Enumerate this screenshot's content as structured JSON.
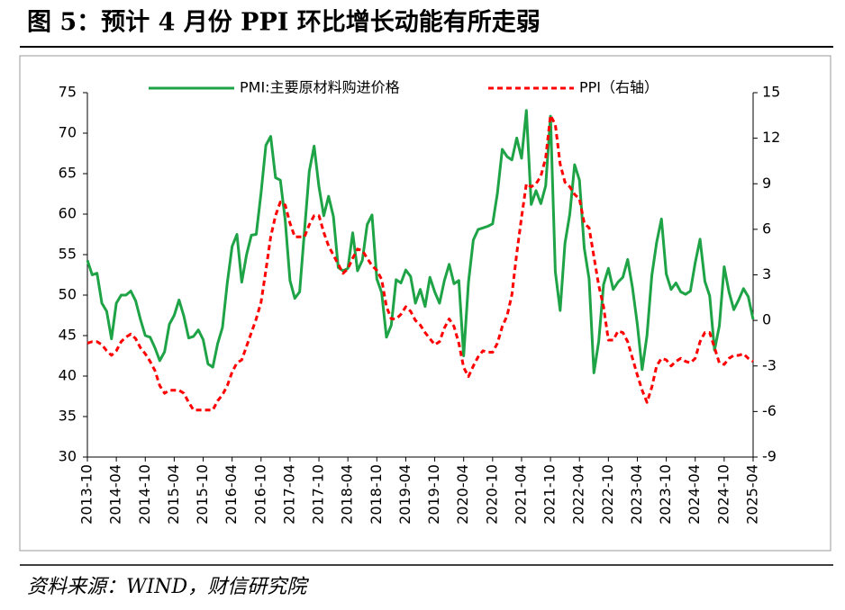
{
  "chart_data": {
    "type": "line",
    "title": "图 5：预计 4 月份 PPI 环比增长动能有所走弱",
    "source": "资料来源：WIND，财信研究院",
    "legend": "top",
    "categories": [
      "2013-10",
      null,
      null,
      null,
      null,
      null,
      "2014-04",
      null,
      null,
      null,
      null,
      null,
      "2014-10",
      null,
      null,
      null,
      null,
      null,
      "2015-04",
      null,
      null,
      null,
      null,
      null,
      "2015-10",
      null,
      null,
      null,
      null,
      null,
      "2016-04",
      null,
      null,
      null,
      null,
      null,
      "2016-10",
      null,
      null,
      null,
      null,
      null,
      "2017-04",
      null,
      null,
      null,
      null,
      null,
      "2017-10",
      null,
      null,
      null,
      null,
      null,
      "2018-04",
      null,
      null,
      null,
      null,
      null,
      "2018-10",
      null,
      null,
      null,
      null,
      null,
      "2019-04",
      null,
      null,
      null,
      null,
      null,
      "2019-10",
      null,
      null,
      null,
      null,
      null,
      "2020-04",
      null,
      null,
      null,
      null,
      null,
      "2020-10",
      null,
      null,
      null,
      null,
      null,
      "2021-04",
      null,
      null,
      null,
      null,
      null,
      "2021-10",
      null,
      null,
      null,
      null,
      null,
      "2022-04",
      null,
      null,
      null,
      null,
      null,
      "2022-10",
      null,
      null,
      null,
      null,
      null,
      "2023-04",
      null,
      null,
      null,
      null,
      null,
      "2023-10",
      null,
      null,
      null,
      null,
      null,
      "2024-04",
      null,
      null,
      null,
      null,
      null,
      "2024-10",
      null,
      null,
      null,
      null,
      null,
      "2025-04"
    ],
    "series": [
      {
        "name": "PMI:主要原材料购进价格",
        "color": "#1fa347",
        "axis": "y",
        "values": [
          54.3,
          52.5,
          52.7,
          49.0,
          48.0,
          44.6,
          49.0,
          50.0,
          50.0,
          50.5,
          49.3,
          47.0,
          45.0,
          44.8,
          43.5,
          41.9,
          43.0,
          46.4,
          47.5,
          49.4,
          47.4,
          44.7,
          44.9,
          45.7,
          44.5,
          41.5,
          41.1,
          44.0,
          46.0,
          51.5,
          56.0,
          57.5,
          51.6,
          55.0,
          57.4,
          57.5,
          62.6,
          68.5,
          69.6,
          64.5,
          64.2,
          59.3,
          51.8,
          49.6,
          50.4,
          57.9,
          65.3,
          68.4,
          63.4,
          59.8,
          62.2,
          59.7,
          53.4,
          53.0,
          53.3,
          57.7,
          53.0,
          54.3,
          58.7,
          59.9,
          52.0,
          50.3,
          44.8,
          46.3,
          51.9,
          51.5,
          53.1,
          52.3,
          49.0,
          50.7,
          48.6,
          52.2,
          50.4,
          49.0,
          51.8,
          53.8,
          51.4,
          51.8,
          42.5,
          51.6,
          56.8,
          58.1,
          58.3,
          58.5,
          58.8,
          62.6,
          68.0,
          67.1,
          66.7,
          69.4,
          66.9,
          72.8,
          61.2,
          62.9,
          61.3,
          63.5,
          72.1,
          52.9,
          48.1,
          56.4,
          60.0,
          66.1,
          64.2,
          55.8,
          52.0,
          40.4,
          44.3,
          51.3,
          53.3,
          50.7,
          51.6,
          52.2,
          54.4,
          50.9,
          46.4,
          40.8,
          45.0,
          52.4,
          56.5,
          59.4,
          52.6,
          50.7,
          51.5,
          50.4,
          50.1,
          50.5,
          54.0,
          56.9,
          51.7,
          49.9,
          43.2,
          46.2,
          53.5,
          50.4,
          48.2,
          49.4,
          50.8,
          49.8,
          47.0
        ]
      },
      {
        "name": "PPI（右轴）",
        "color": "#ff0000",
        "axis": "y2",
        "dash": true,
        "values": [
          -1.5,
          -1.4,
          -1.4,
          -1.6,
          -2.0,
          -2.3,
          -2.0,
          -1.4,
          -1.1,
          -0.9,
          -1.2,
          -1.8,
          -2.2,
          -2.7,
          -3.3,
          -4.3,
          -4.8,
          -4.6,
          -4.6,
          -4.6,
          -4.8,
          -5.4,
          -5.9,
          -5.9,
          -5.9,
          -5.9,
          -5.9,
          -5.3,
          -4.9,
          -4.3,
          -3.4,
          -2.8,
          -2.6,
          -1.7,
          -0.8,
          0.1,
          1.2,
          3.3,
          5.5,
          6.9,
          7.8,
          7.6,
          6.4,
          5.5,
          5.5,
          5.5,
          6.3,
          6.9,
          6.9,
          5.8,
          4.9,
          4.3,
          3.7,
          3.1,
          3.4,
          4.1,
          4.7,
          4.6,
          4.1,
          3.6,
          3.3,
          2.7,
          0.9,
          0.1,
          0.1,
          0.4,
          0.9,
          0.6,
          0.0,
          -0.3,
          -0.8,
          -1.2,
          -1.6,
          -1.4,
          -0.5,
          0.1,
          -0.4,
          -1.5,
          -3.1,
          -3.7,
          -3.0,
          -2.4,
          -2.0,
          -2.1,
          -2.1,
          -1.5,
          -0.4,
          0.3,
          1.7,
          4.4,
          6.8,
          9.0,
          8.8,
          9.0,
          9.5,
          10.7,
          13.5,
          12.9,
          10.3,
          9.1,
          8.8,
          8.3,
          8.0,
          6.4,
          6.1,
          4.2,
          2.3,
          0.9,
          -1.3,
          -1.3,
          -0.7,
          -0.8,
          -1.4,
          -2.5,
          -3.6,
          -4.6,
          -5.4,
          -4.4,
          -3.0,
          -2.5,
          -2.6,
          -3.0,
          -2.7,
          -2.5,
          -2.7,
          -2.8,
          -2.5,
          -1.4,
          -0.8,
          -0.8,
          -1.8,
          -2.8,
          -2.9,
          -2.5,
          -2.3,
          -2.3,
          -2.2,
          -2.5,
          -2.7
        ]
      }
    ],
    "ylim": [
      30,
      75
    ],
    "yticks": [
      30,
      35,
      40,
      45,
      50,
      55,
      60,
      65,
      70,
      75
    ],
    "y2lim": [
      -9,
      15
    ],
    "y2ticks": [
      -9,
      -6,
      -3,
      0,
      3,
      6,
      9,
      12,
      15
    ]
  }
}
